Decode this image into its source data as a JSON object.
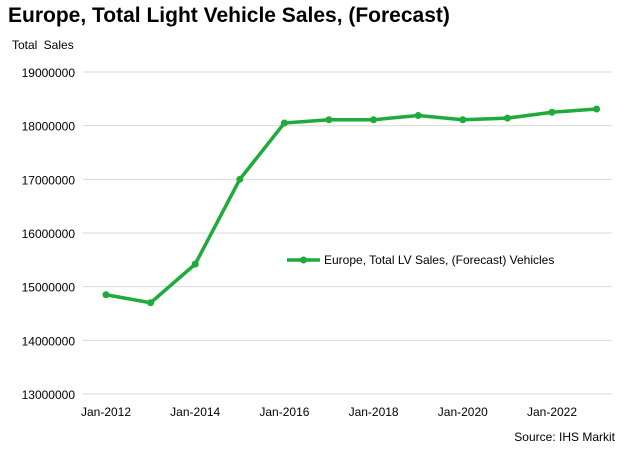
{
  "chart_data": {
    "type": "line",
    "title": "Europe, Total Light Vehicle Sales, (Forecast)",
    "ylabel": "Total  Sales",
    "xlabel": "",
    "source": "Source: IHS Markit",
    "x": [
      "Jan-2012",
      "Jan-2013",
      "Jan-2014",
      "Jan-2015",
      "Jan-2016",
      "Jan-2017",
      "Jan-2018",
      "Jan-2019",
      "Jan-2020",
      "Jan-2021",
      "Jan-2022",
      "Jan-2023"
    ],
    "xtick_labels": [
      "Jan-2012",
      "Jan-2014",
      "Jan-2016",
      "Jan-2018",
      "Jan-2020",
      "Jan-2022"
    ],
    "ytick_labels": [
      "13000000",
      "14000000",
      "15000000",
      "16000000",
      "17000000",
      "18000000",
      "19000000"
    ],
    "ylim": [
      13000000,
      19000000
    ],
    "grid": true,
    "legend_position": "center-right",
    "series": [
      {
        "name": "Europe, Total LV Sales, (Forecast) Vehicles",
        "color": "#1faa3c",
        "values": [
          14850000,
          14700000,
          15420000,
          17000000,
          18050000,
          18110000,
          18110000,
          18190000,
          18110000,
          18140000,
          18250000,
          18310000
        ]
      }
    ]
  }
}
